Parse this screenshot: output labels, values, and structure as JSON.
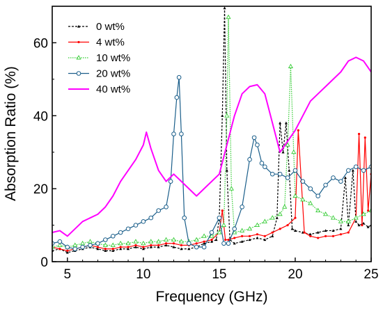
{
  "chart_data": {
    "type": "line",
    "xlabel": "Frequency (GHz)",
    "ylabel": "Absorption Ratio (%)",
    "xlim": [
      4,
      25
    ],
    "ylim": [
      0,
      70
    ],
    "xticks": [
      5,
      10,
      15,
      20,
      25
    ],
    "yticks": [
      0,
      20,
      40,
      60
    ],
    "grid": false,
    "legend": "top-left",
    "series": [
      {
        "name": "0 wt%",
        "color": "#000000",
        "marker": "triangle-up",
        "line": "dashed",
        "x": [
          4.0,
          4.5,
          5.0,
          5.5,
          6.0,
          6.5,
          7.0,
          7.5,
          8.0,
          8.5,
          9.0,
          9.5,
          10.0,
          10.5,
          11.0,
          11.5,
          12.0,
          12.5,
          13.0,
          13.5,
          14.0,
          14.5,
          14.8,
          15.0,
          15.2,
          15.35,
          15.5,
          15.7,
          16.0,
          16.5,
          17.0,
          17.5,
          18.0,
          18.5,
          18.8,
          19.0,
          19.2,
          19.4,
          19.6,
          19.8,
          20.0,
          20.5,
          21.0,
          21.5,
          22.0,
          22.5,
          23.0,
          23.3,
          23.5,
          23.8,
          24.0,
          24.2,
          24.5,
          24.8,
          25.0
        ],
        "y": [
          3,
          3.5,
          2.5,
          3,
          3.5,
          4,
          3.5,
          3,
          3,
          3.5,
          3.5,
          4,
          3.5,
          4,
          4,
          4.5,
          4,
          3.5,
          3.5,
          4,
          5,
          5.5,
          6,
          12,
          40,
          69.5,
          25,
          6,
          5,
          5.5,
          6,
          6.5,
          6,
          7,
          12,
          38,
          30,
          38,
          25,
          9,
          8.5,
          8,
          7.5,
          8,
          8.5,
          8.5,
          9,
          23,
          10,
          25,
          11,
          10,
          10.5,
          9.5,
          10
        ]
      },
      {
        "name": "4 wt%",
        "color": "#ff0000",
        "marker": "dot",
        "line": "solid",
        "x": [
          4.0,
          4.5,
          5.0,
          5.5,
          6.0,
          6.5,
          7.0,
          7.5,
          8.0,
          8.5,
          9.0,
          9.5,
          10.0,
          10.5,
          11.0,
          11.5,
          12.0,
          12.5,
          13.0,
          13.5,
          14.0,
          14.5,
          15.0,
          15.2,
          15.4,
          15.6,
          16.0,
          16.5,
          17.0,
          17.5,
          18.0,
          18.5,
          19.0,
          19.5,
          20.0,
          20.2,
          20.4,
          20.6,
          21.0,
          21.5,
          22.0,
          22.5,
          23.0,
          23.5,
          24.0,
          24.2,
          24.4,
          24.6,
          24.8,
          25.0
        ],
        "y": [
          4,
          3.5,
          3,
          3.5,
          4,
          4.5,
          4,
          3.5,
          3.5,
          4,
          4,
          4.5,
          4,
          4.5,
          4.5,
          5,
          5,
          4.5,
          4.5,
          5,
          5.5,
          6,
          8,
          14,
          6,
          6,
          6.5,
          7,
          7,
          7.5,
          7,
          8,
          9,
          10,
          12,
          36,
          22,
          8,
          7,
          6.5,
          7,
          7,
          7.5,
          8,
          12,
          35,
          10,
          34,
          14,
          24
        ]
      },
      {
        "name": "10 wt%",
        "color": "#33cc33",
        "marker": "triangle-open",
        "line": "dotted",
        "x": [
          4.0,
          4.5,
          5.0,
          5.5,
          6.0,
          6.5,
          7.0,
          7.5,
          8.0,
          8.5,
          9.0,
          9.5,
          10.0,
          10.5,
          11.0,
          11.5,
          12.0,
          12.5,
          13.0,
          13.5,
          14.0,
          14.5,
          15.0,
          15.3,
          15.5,
          15.6,
          15.8,
          16.0,
          16.5,
          17.0,
          17.5,
          18.0,
          18.5,
          19.0,
          19.3,
          19.5,
          19.7,
          19.9,
          20.0,
          20.5,
          21.0,
          21.5,
          22.0,
          22.5,
          23.0,
          23.5,
          24.0,
          24.5,
          25.0
        ],
        "y": [
          4,
          4.5,
          4,
          4.5,
          5,
          5.5,
          5,
          4.5,
          4.5,
          5,
          5,
          5.5,
          5,
          5.5,
          5.5,
          6,
          6,
          5.5,
          5.5,
          6,
          7,
          7,
          8,
          10,
          40,
          67,
          20,
          8,
          8.5,
          9,
          10,
          11,
          12,
          13,
          15,
          32,
          53.5,
          30,
          18,
          17,
          16,
          14,
          13,
          12,
          11,
          11,
          12,
          13,
          14
        ]
      },
      {
        "name": "20 wt%",
        "color": "#1a5e8a",
        "marker": "circle-open",
        "line": "solid",
        "x": [
          4.0,
          4.5,
          5.0,
          5.5,
          6.0,
          6.5,
          7.0,
          7.5,
          8.0,
          8.5,
          9.0,
          9.5,
          10.0,
          10.5,
          11.0,
          11.5,
          11.8,
          12.0,
          12.2,
          12.35,
          12.5,
          12.7,
          13.0,
          13.5,
          14.0,
          14.5,
          15.0,
          15.3,
          15.6,
          16.0,
          16.5,
          17.0,
          17.3,
          17.5,
          17.8,
          18.0,
          18.5,
          19.0,
          19.5,
          20.0,
          20.5,
          21.0,
          21.5,
          22.0,
          22.5,
          23.0,
          23.5,
          24.0,
          24.5,
          25.0
        ],
        "y": [
          5,
          5.5,
          4,
          3.5,
          4,
          4.5,
          5,
          6,
          7,
          8,
          9,
          10,
          11,
          12,
          14,
          15,
          22,
          35,
          45,
          50.5,
          35,
          12,
          5,
          4,
          4,
          8,
          12,
          5,
          5,
          9,
          15,
          28,
          34,
          32,
          27,
          26,
          24,
          24,
          23,
          25,
          22,
          20,
          18,
          21,
          23,
          22,
          25,
          26,
          25,
          26
        ]
      },
      {
        "name": "40 wt%",
        "color": "#ff00ff",
        "marker": "none",
        "line": "solid",
        "x": [
          4.0,
          4.5,
          5.0,
          5.5,
          6.0,
          6.5,
          7.0,
          7.5,
          8.0,
          8.5,
          9.0,
          9.5,
          10.0,
          10.2,
          10.5,
          11.0,
          11.5,
          12.0,
          12.5,
          13.0,
          13.5,
          14.0,
          14.5,
          15.0,
          15.5,
          16.0,
          16.5,
          17.0,
          17.5,
          18.0,
          18.5,
          19.0,
          19.5,
          20.0,
          20.5,
          21.0,
          21.5,
          22.0,
          22.5,
          23.0,
          23.5,
          24.0,
          24.5,
          25.0
        ],
        "y": [
          8,
          8.5,
          7,
          9,
          11,
          12,
          13,
          15,
          18,
          22,
          25,
          28,
          32,
          35.5,
          31,
          25,
          22,
          24,
          22,
          20,
          18,
          20,
          22,
          24,
          32,
          40,
          46,
          48,
          48.5,
          46,
          38,
          30,
          33,
          36,
          40,
          44,
          46,
          48,
          50,
          52,
          55,
          56,
          55,
          52
        ]
      }
    ]
  }
}
